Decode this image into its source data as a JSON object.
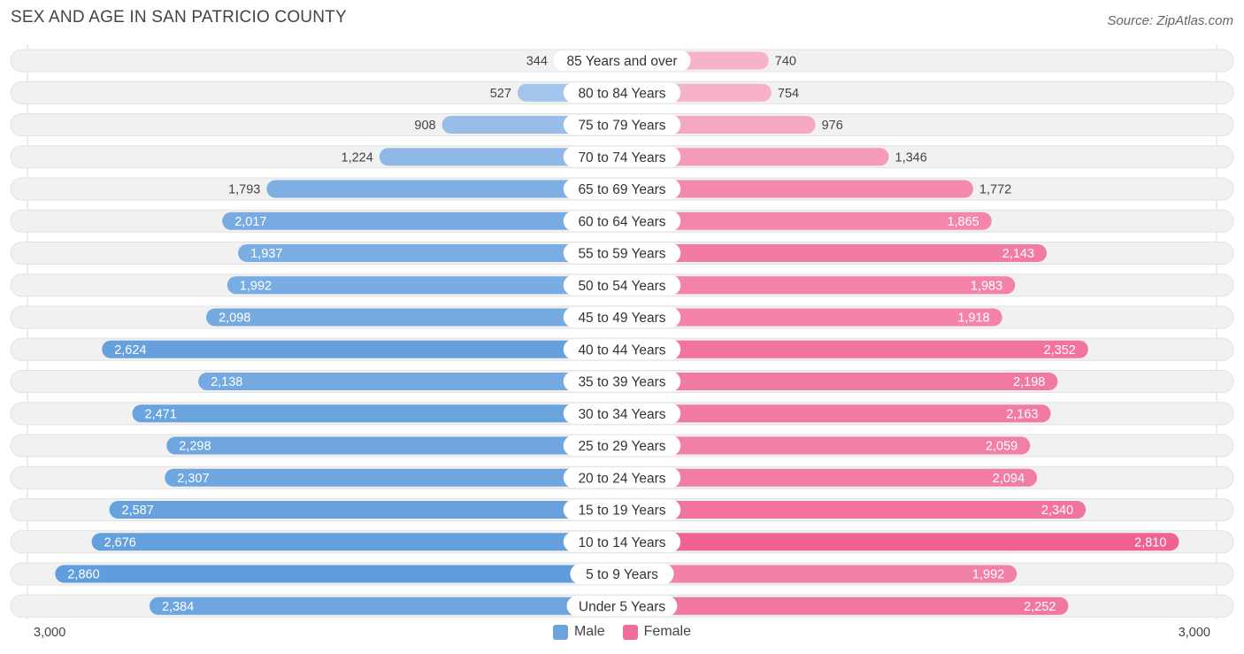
{
  "title": "SEX AND AGE IN SAN PATRICIO COUNTY",
  "source": "Source: ZipAtlas.com",
  "colors": {
    "male_light": "#aac8ec",
    "male_dark": "#5f9ddd",
    "female_light": "#f7b3c9",
    "female_dark": "#f0628f",
    "row_bg": "#f1f1f1",
    "row_border": "#e2e2e2"
  },
  "chart_data": {
    "type": "bar",
    "orientation": "horizontal-diverging",
    "title": "SEX AND AGE IN SAN PATRICIO COUNTY",
    "categories": [
      "85 Years and over",
      "80 to 84 Years",
      "75 to 79 Years",
      "70 to 74 Years",
      "65 to 69 Years",
      "60 to 64 Years",
      "55 to 59 Years",
      "50 to 54 Years",
      "45 to 49 Years",
      "40 to 44 Years",
      "35 to 39 Years",
      "30 to 34 Years",
      "25 to 29 Years",
      "20 to 24 Years",
      "15 to 19 Years",
      "10 to 14 Years",
      "5 to 9 Years",
      "Under 5 Years"
    ],
    "series": [
      {
        "name": "Male",
        "values": [
          344,
          527,
          908,
          1224,
          1793,
          2017,
          1937,
          1992,
          2098,
          2624,
          2138,
          2471,
          2298,
          2307,
          2587,
          2676,
          2860,
          2384
        ],
        "labels": [
          "344",
          "527",
          "908",
          "1,224",
          "1,793",
          "2,017",
          "1,937",
          "1,992",
          "2,098",
          "2,624",
          "2,138",
          "2,471",
          "2,298",
          "2,307",
          "2,587",
          "2,676",
          "2,860",
          "2,384"
        ]
      },
      {
        "name": "Female",
        "values": [
          740,
          754,
          976,
          1346,
          1772,
          1865,
          2143,
          1983,
          1918,
          2352,
          2198,
          2163,
          2059,
          2094,
          2340,
          2810,
          1992,
          2252
        ],
        "labels": [
          "740",
          "754",
          "976",
          "1,346",
          "1,772",
          "1,865",
          "2,143",
          "1,983",
          "1,918",
          "2,352",
          "2,198",
          "2,163",
          "2,059",
          "2,094",
          "2,340",
          "2,810",
          "1,992",
          "2,252"
        ]
      }
    ],
    "xlim": [
      0,
      3000
    ],
    "axis_min_label": "3,000",
    "axis_max_label": "3,000",
    "legend_position": "bottom-center"
  },
  "legend": {
    "male": "Male",
    "female": "Female"
  }
}
